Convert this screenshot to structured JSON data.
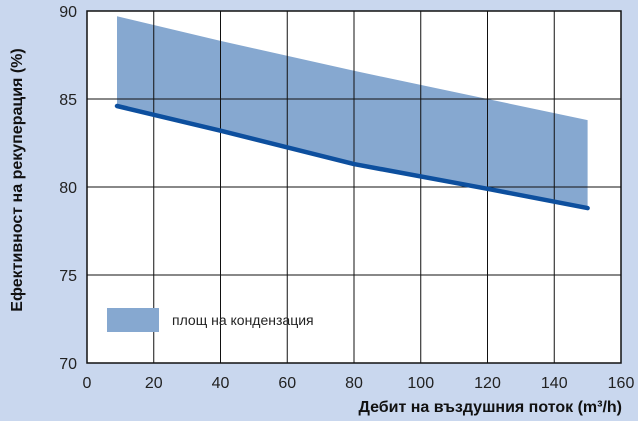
{
  "colors": {
    "background": "#c9d7ee",
    "plot_background": "#ffffff",
    "band_fill": "#86a8d0",
    "line": "#0d4f9e",
    "grid": "#111111"
  },
  "chart_data": {
    "type": "area",
    "xlabel": "Дебит на въздушния поток (m³/h)",
    "ylabel": "Ефективност на рекуперация (%)",
    "xlim": [
      0,
      160
    ],
    "ylim": [
      70,
      90
    ],
    "x_ticks": [
      "0",
      "20",
      "40",
      "60",
      "80",
      "100",
      "120",
      "140",
      "160"
    ],
    "y_ticks": [
      "70",
      "75",
      "80",
      "85",
      "90"
    ],
    "grid": true,
    "legend": {
      "position": "bottom-left",
      "entries": [
        "площ на кондензация"
      ]
    },
    "series": [
      {
        "name": "площ на кондензация",
        "kind": "band",
        "x": [
          9,
          40,
          80,
          120,
          150
        ],
        "upper": [
          89.7,
          88.3,
          86.6,
          85.0,
          83.8
        ],
        "lower": [
          84.6,
          83.2,
          81.3,
          79.9,
          78.8
        ]
      },
      {
        "kind": "line",
        "x": [
          9,
          40,
          80,
          120,
          150
        ],
        "y": [
          84.6,
          83.2,
          81.3,
          79.9,
          78.8
        ]
      }
    ]
  }
}
